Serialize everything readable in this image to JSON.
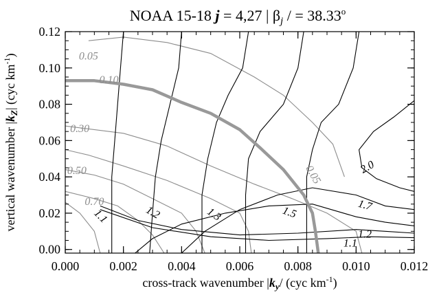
{
  "chart_data": {
    "type": "contour",
    "title": {
      "prefix": "NOAA 15-18 ",
      "j_symbol": "j",
      "j_value": " = 4,27  | ",
      "beta_symbol": "β",
      "beta_sub": "j",
      "beta_value": " / = 38.33",
      "degree": "o"
    },
    "xlabel": {
      "text": "cross-track wavenumber |",
      "symbol": "k",
      "sub": "y",
      "unit_open": "/ (cyc km",
      "unit_exp": "-1",
      "unit_close": ")"
    },
    "ylabel": {
      "text": "vertical wavenumber |",
      "symbol": "k",
      "sub": "Z",
      "unit_open": "| (cyc km",
      "unit_exp": "-1",
      "unit_close": ")"
    },
    "xlim": [
      0.0,
      0.012
    ],
    "ylim": [
      -0.002,
      0.12
    ],
    "x_ticks": [
      0.0,
      0.002,
      0.004,
      0.006,
      0.008,
      0.01,
      0.012
    ],
    "x_tick_labels": [
      "0.000",
      "0.002",
      "0.004",
      "0.006",
      "0.008",
      "0.010",
      "0.012"
    ],
    "y_ticks": [
      0.0,
      0.02,
      0.04,
      0.06,
      0.08,
      0.1,
      0.12
    ],
    "y_tick_labels": [
      "0.00",
      "0.02",
      "0.04",
      "0.06",
      "0.08",
      "0.10",
      "0.12"
    ],
    "black_contours": [
      {
        "points": [
          [
            0.002,
            0.12
          ],
          [
            0.0019,
            0.1
          ],
          [
            0.0018,
            0.08
          ],
          [
            0.0017,
            0.06
          ],
          [
            0.0016,
            0.04
          ],
          [
            0.0016,
            0.02
          ],
          [
            0.0016,
            -0.002
          ]
        ]
      },
      {
        "points": [
          [
            0.004,
            0.12
          ],
          [
            0.0039,
            0.1
          ],
          [
            0.0036,
            0.08
          ],
          [
            0.0033,
            0.06
          ],
          [
            0.0031,
            0.04
          ],
          [
            0.003,
            0.02
          ],
          [
            0.0029,
            -0.002
          ]
        ]
      },
      {
        "points": [
          [
            0.0063,
            0.12
          ],
          [
            0.0061,
            0.1
          ],
          [
            0.0056,
            0.085
          ],
          [
            0.0052,
            0.07
          ],
          [
            0.0049,
            0.05
          ],
          [
            0.0047,
            0.03
          ],
          [
            0.0047,
            0.01
          ],
          [
            0.0047,
            -0.002
          ]
        ]
      },
      {
        "points": [
          [
            0.0082,
            0.12
          ],
          [
            0.008,
            0.1
          ],
          [
            0.0075,
            0.08
          ],
          [
            0.0067,
            0.065
          ],
          [
            0.0063,
            0.05
          ],
          [
            0.0062,
            0.03
          ],
          [
            0.0062,
            0.01
          ],
          [
            0.0062,
            -0.002
          ]
        ]
      },
      {
        "points": [
          [
            0.0101,
            0.12
          ],
          [
            0.0099,
            0.1
          ],
          [
            0.0094,
            0.08
          ],
          [
            0.0088,
            0.07
          ],
          [
            0.0085,
            0.055
          ],
          [
            0.0083,
            0.04
          ],
          [
            0.0083,
            0.02
          ],
          [
            0.0083,
            0.005
          ],
          [
            0.0083,
            -0.002
          ]
        ]
      },
      {
        "points": [
          [
            0.012,
            0.082
          ],
          [
            0.0113,
            0.073
          ],
          [
            0.0106,
            0.065
          ],
          [
            0.0101,
            0.055
          ],
          [
            0.0102,
            0.045
          ],
          [
            0.0107,
            0.039
          ],
          [
            0.0115,
            0.034
          ],
          [
            0.012,
            0.032
          ]
        ]
      },
      {
        "points": [
          [
            0.004,
            -0.002
          ],
          [
            0.0048,
            0.01
          ],
          [
            0.006,
            0.022
          ],
          [
            0.0073,
            0.03
          ],
          [
            0.0085,
            0.034
          ],
          [
            0.01,
            0.03
          ],
          [
            0.011,
            0.024
          ],
          [
            0.012,
            0.022
          ]
        ]
      },
      {
        "points": [
          [
            0.0024,
            -0.002
          ],
          [
            0.003,
            0.006
          ],
          [
            0.004,
            0.014
          ],
          [
            0.0055,
            0.02
          ],
          [
            0.007,
            0.024
          ],
          [
            0.0085,
            0.025
          ],
          [
            0.01,
            0.018
          ],
          [
            0.011,
            0.015
          ],
          [
            0.012,
            0.013
          ]
        ]
      },
      {
        "points": [
          [
            0.0012,
            0.024
          ],
          [
            0.0025,
            0.016
          ],
          [
            0.004,
            0.011
          ],
          [
            0.006,
            0.008
          ],
          [
            0.008,
            0.009
          ],
          [
            0.01,
            0.011
          ],
          [
            0.011,
            0.01
          ],
          [
            0.012,
            0.009
          ]
        ]
      },
      {
        "points": [
          [
            0.0012,
            0.022
          ],
          [
            0.003,
            0.012
          ],
          [
            0.005,
            0.007
          ],
          [
            0.007,
            0.005
          ],
          [
            0.009,
            0.006
          ],
          [
            0.0105,
            0.007
          ],
          [
            0.012,
            0.0065
          ]
        ]
      }
    ],
    "gray_contours": [
      {
        "points": [
          [
            0.0008,
            0.115
          ],
          [
            0.002,
            0.117
          ],
          [
            0.0035,
            0.114
          ],
          [
            0.005,
            0.108
          ],
          [
            0.0065,
            0.095
          ],
          [
            0.0075,
            0.085
          ],
          [
            0.0085,
            0.07
          ],
          [
            0.0092,
            0.058
          ],
          [
            0.0096,
            0.04
          ]
        ]
      },
      {
        "points": [
          [
            0.0,
            0.068
          ],
          [
            0.002,
            0.064
          ],
          [
            0.0035,
            0.057
          ],
          [
            0.005,
            0.046
          ],
          [
            0.0065,
            0.036
          ],
          [
            0.0078,
            0.028
          ],
          [
            0.009,
            0.02
          ],
          [
            0.01,
            0.01
          ],
          [
            0.0102,
            -0.002
          ]
        ]
      },
      {
        "points": [
          [
            0.0,
            0.055
          ],
          [
            0.0008,
            0.052
          ],
          [
            0.002,
            0.046
          ],
          [
            0.0035,
            0.038
          ],
          [
            0.005,
            0.028
          ],
          [
            0.006,
            0.02
          ],
          [
            0.0063,
            0.01
          ],
          [
            0.0064,
            -0.002
          ]
        ]
      },
      {
        "points": [
          [
            0.0,
            0.044
          ],
          [
            0.001,
            0.041
          ],
          [
            0.002,
            0.036
          ],
          [
            0.003,
            0.028
          ],
          [
            0.004,
            0.02
          ],
          [
            0.0045,
            0.01
          ],
          [
            0.0048,
            -0.002
          ]
        ]
      },
      {
        "points": [
          [
            0.0,
            0.032
          ],
          [
            0.001,
            0.028
          ],
          [
            0.0018,
            0.024
          ],
          [
            0.0025,
            0.016
          ],
          [
            0.003,
            0.008
          ],
          [
            0.0034,
            -0.002
          ]
        ]
      },
      {
        "points": [
          [
            0.0,
            0.026
          ],
          [
            0.0005,
            0.02
          ],
          [
            0.001,
            0.01
          ],
          [
            0.0012,
            -0.002
          ]
        ]
      }
    ],
    "thick_contour": {
      "points": [
        [
          0.0,
          0.093
        ],
        [
          0.001,
          0.093
        ],
        [
          0.002,
          0.091
        ],
        [
          0.003,
          0.088
        ],
        [
          0.004,
          0.081
        ],
        [
          0.005,
          0.075
        ],
        [
          0.006,
          0.066
        ],
        [
          0.0067,
          0.056
        ],
        [
          0.0075,
          0.044
        ],
        [
          0.0082,
          0.03
        ],
        [
          0.0085,
          0.02
        ],
        [
          0.0086,
          0.01
        ],
        [
          0.0087,
          -0.002
        ]
      ]
    },
    "black_labels": [
      {
        "text": "1.1",
        "x": 0.0012,
        "y": 0.018,
        "rotate": 45
      },
      {
        "text": "1.2",
        "x": 0.003,
        "y": 0.02,
        "rotate": 30
      },
      {
        "text": "1.3",
        "x": 0.0051,
        "y": 0.019,
        "rotate": 35
      },
      {
        "text": "1.5",
        "x": 0.0077,
        "y": 0.02,
        "rotate": 20
      },
      {
        "text": "1.7",
        "x": 0.0103,
        "y": 0.024,
        "rotate": 15
      },
      {
        "text": "2.0",
        "x": 0.0104,
        "y": 0.045,
        "rotate": -30
      },
      {
        "text": "1.2",
        "x": 0.0103,
        "y": 0.008,
        "rotate": 0
      },
      {
        "text": "1.1",
        "x": 0.0098,
        "y": 0.003,
        "rotate": 0
      }
    ],
    "gray_labels": [
      {
        "text": "0.05",
        "x": 0.0008,
        "y": 0.106,
        "rotate": 0
      },
      {
        "text": "0.10",
        "x": 0.0015,
        "y": 0.093,
        "rotate": 0
      },
      {
        "text": "0.30",
        "x": 0.0005,
        "y": 0.066,
        "rotate": 0
      },
      {
        "text": "0.50",
        "x": 0.0004,
        "y": 0.043,
        "rotate": 0
      },
      {
        "text": "0.70",
        "x": 0.001,
        "y": 0.026,
        "rotate": 0
      },
      {
        "text": "0.05",
        "x": 0.0085,
        "y": 0.041,
        "rotate": 60
      }
    ],
    "colors": {
      "black_contour": "#000000",
      "gray_contour": "#8c8c8c",
      "thick_contour": "#999999",
      "axes": "#000000"
    }
  }
}
